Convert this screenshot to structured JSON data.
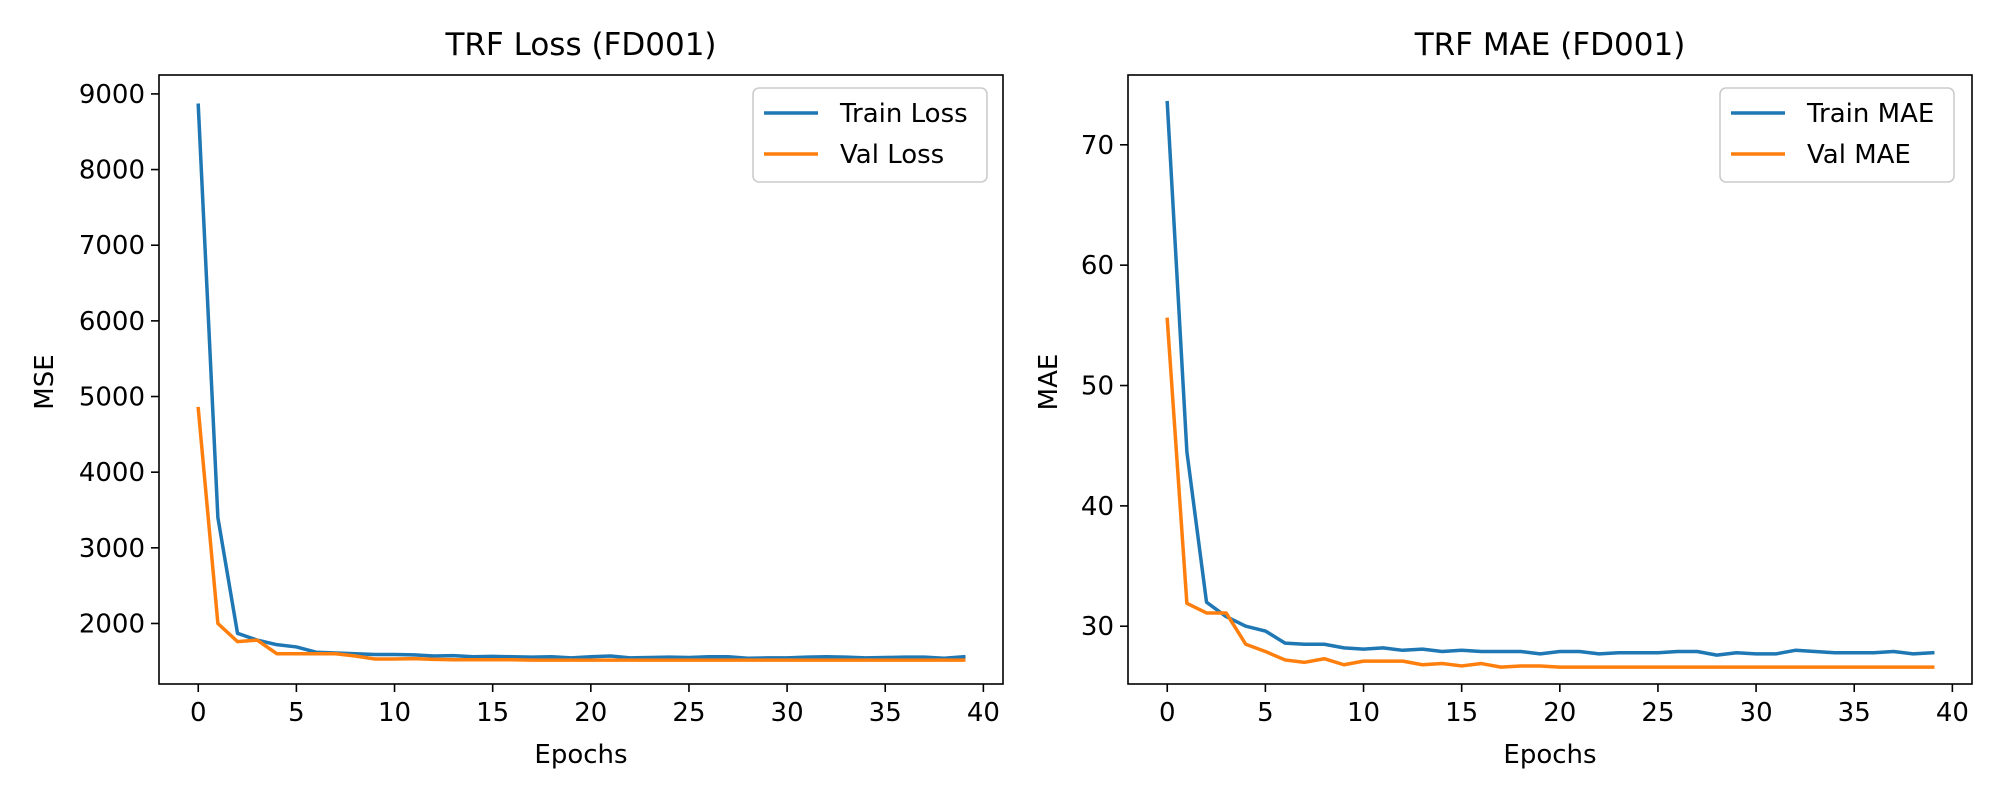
{
  "figure": {
    "colors": {
      "train": "#1f77b4",
      "val": "#ff7f0e",
      "axes": "#000000"
    }
  },
  "chart_data": [
    {
      "type": "line",
      "title": "TRF Loss (FD001)",
      "xlabel": "Epochs",
      "ylabel": "MSE",
      "xlim": [
        -2,
        41
      ],
      "ylim": [
        1200,
        9250
      ],
      "xticks": [
        0,
        5,
        10,
        15,
        20,
        25,
        30,
        35,
        40
      ],
      "yticks": [
        2000,
        3000,
        4000,
        5000,
        6000,
        7000,
        8000,
        9000
      ],
      "legend_position": "top-right",
      "x": [
        0,
        1,
        2,
        3,
        4,
        5,
        6,
        7,
        8,
        9,
        10,
        11,
        12,
        13,
        14,
        15,
        16,
        17,
        18,
        19,
        20,
        21,
        22,
        23,
        24,
        25,
        26,
        27,
        28,
        29,
        30,
        31,
        32,
        33,
        34,
        35,
        36,
        37,
        38,
        39
      ],
      "series": [
        {
          "name": "Train Loss",
          "color": "#1f77b4",
          "values": [
            8850,
            3400,
            1870,
            1780,
            1720,
            1690,
            1620,
            1610,
            1600,
            1590,
            1590,
            1585,
            1570,
            1575,
            1560,
            1565,
            1560,
            1555,
            1560,
            1545,
            1560,
            1570,
            1545,
            1550,
            1555,
            1550,
            1560,
            1560,
            1540,
            1545,
            1545,
            1555,
            1560,
            1555,
            1545,
            1550,
            1555,
            1555,
            1540,
            1560
          ]
        },
        {
          "name": "Val Loss",
          "color": "#ff7f0e",
          "values": [
            4840,
            2000,
            1760,
            1780,
            1600,
            1600,
            1600,
            1600,
            1570,
            1530,
            1530,
            1535,
            1525,
            1520,
            1520,
            1520,
            1520,
            1515,
            1515,
            1515,
            1515,
            1515,
            1515,
            1515,
            1515,
            1515,
            1515,
            1515,
            1515,
            1515,
            1515,
            1515,
            1515,
            1515,
            1515,
            1515,
            1515,
            1515,
            1515,
            1515
          ]
        }
      ]
    },
    {
      "type": "line",
      "title": "TRF MAE (FD001)",
      "xlabel": "Epochs",
      "ylabel": "MAE",
      "xlim": [
        -2,
        41
      ],
      "ylim": [
        25.2,
        75.8
      ],
      "xticks": [
        0,
        5,
        10,
        15,
        20,
        25,
        30,
        35,
        40
      ],
      "yticks": [
        30,
        40,
        50,
        60,
        70
      ],
      "legend_position": "top-right",
      "x": [
        0,
        1,
        2,
        3,
        4,
        5,
        6,
        7,
        8,
        9,
        10,
        11,
        12,
        13,
        14,
        15,
        16,
        17,
        18,
        19,
        20,
        21,
        22,
        23,
        24,
        25,
        26,
        27,
        28,
        29,
        30,
        31,
        32,
        33,
        34,
        35,
        36,
        37,
        38,
        39
      ],
      "series": [
        {
          "name": "Train MAE",
          "color": "#1f77b4",
          "values": [
            73.5,
            44.5,
            32.0,
            30.8,
            30.0,
            29.6,
            28.6,
            28.5,
            28.5,
            28.2,
            28.1,
            28.2,
            28.0,
            28.1,
            27.9,
            28.0,
            27.9,
            27.9,
            27.9,
            27.7,
            27.9,
            27.9,
            27.7,
            27.8,
            27.8,
            27.8,
            27.9,
            27.9,
            27.6,
            27.8,
            27.7,
            27.7,
            28.0,
            27.9,
            27.8,
            27.8,
            27.8,
            27.9,
            27.7,
            27.8
          ]
        },
        {
          "name": "Val MAE",
          "color": "#ff7f0e",
          "values": [
            55.5,
            31.9,
            31.1,
            31.1,
            28.5,
            27.9,
            27.2,
            27.0,
            27.3,
            26.8,
            27.1,
            27.1,
            27.1,
            26.8,
            26.9,
            26.7,
            26.9,
            26.6,
            26.7,
            26.7,
            26.6,
            26.6,
            26.6,
            26.6,
            26.6,
            26.6,
            26.6,
            26.6,
            26.6,
            26.6,
            26.6,
            26.6,
            26.6,
            26.6,
            26.6,
            26.6,
            26.6,
            26.6,
            26.6,
            26.6
          ]
        }
      ]
    }
  ]
}
